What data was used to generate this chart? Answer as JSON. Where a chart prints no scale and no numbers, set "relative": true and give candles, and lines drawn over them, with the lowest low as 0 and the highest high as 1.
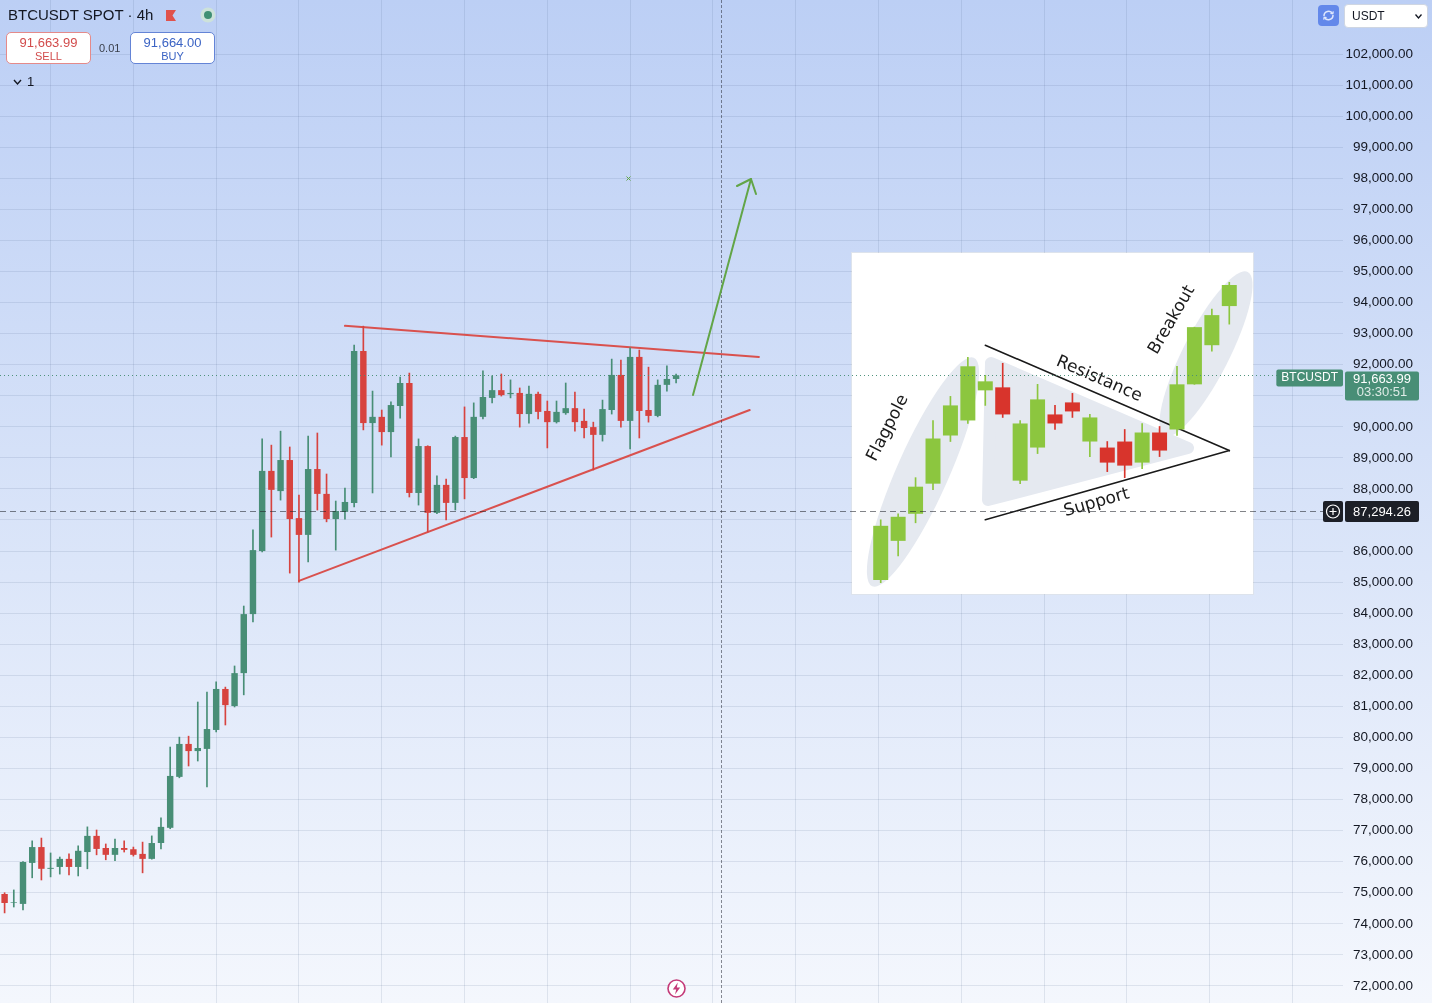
{
  "chart_data": [
    {
      "type": "candlestick",
      "title": "BTCUSDT SPOT · 4h",
      "categories": [
        null,
        null,
        null,
        null,
        null,
        null,
        null,
        null,
        null,
        null,
        null,
        null,
        null,
        null,
        null,
        null,
        null,
        null,
        null,
        null,
        null,
        null,
        null,
        null,
        null,
        null,
        null,
        null,
        null,
        null,
        null,
        null,
        null,
        null,
        null,
        null,
        null,
        null,
        null,
        null,
        null,
        null,
        null,
        null,
        null,
        null,
        null,
        null,
        null,
        null,
        null,
        null,
        null,
        null,
        null,
        null,
        null,
        null,
        null,
        null,
        null,
        null,
        null,
        null,
        null,
        null,
        null,
        null,
        null,
        null,
        null,
        null,
        null,
        null,
        null,
        null,
        null,
        null,
        null,
        null,
        null,
        null,
        null,
        null,
        null,
        null,
        null,
        null,
        null,
        null,
        null,
        null,
        null,
        null,
        null,
        null,
        null,
        null,
        null,
        null,
        null,
        null,
        null,
        null,
        null,
        null,
        null,
        null,
        null,
        null,
        null,
        null,
        null,
        null,
        null,
        null,
        null,
        null,
        null,
        null,
        null,
        null,
        null,
        null,
        null,
        null,
        null,
        null,
        null,
        null,
        null,
        null,
        null,
        null,
        null,
        null,
        null,
        null,
        null,
        null,
        null,
        null,
        null,
        null,
        null,
        null
      ],
      "ohlc": [
        [
          74960,
          75000,
          74350,
          74670
        ],
        [
          74680,
          75090,
          74540,
          74700
        ],
        [
          74640,
          76000,
          74450,
          75990
        ],
        [
          75960,
          76670,
          75480,
          76470
        ],
        [
          76470,
          76760,
          75410,
          75770
        ],
        [
          75770,
          76280,
          75510,
          75800
        ],
        [
          75830,
          76150,
          75600,
          76090
        ],
        [
          76090,
          76250,
          75570,
          75830
        ],
        [
          75830,
          76510,
          75540,
          76350
        ],
        [
          76310,
          77120,
          75770,
          76830
        ],
        [
          76830,
          77020,
          76220,
          76410
        ],
        [
          76440,
          76570,
          76060,
          76220
        ],
        [
          76220,
          76730,
          76030,
          76440
        ],
        [
          76440,
          76670,
          76310,
          76380
        ],
        [
          76400,
          76470,
          76180,
          76220
        ],
        [
          76250,
          76630,
          75640,
          76090
        ],
        [
          76090,
          76830,
          76080,
          76600
        ],
        [
          76600,
          77410,
          76410,
          77120
        ],
        [
          77090,
          79690,
          77060,
          78760
        ],
        [
          78730,
          80010,
          78700,
          79790
        ],
        [
          79790,
          80040,
          79080,
          79560
        ],
        [
          79560,
          81140,
          79240,
          79660
        ],
        [
          79630,
          81460,
          78410,
          80270
        ],
        [
          80240,
          81790,
          80180,
          81560
        ],
        [
          81560,
          81620,
          80400,
          81040
        ],
        [
          81010,
          82300,
          80980,
          82070
        ],
        [
          82070,
          84230,
          81370,
          83970
        ],
        [
          83970,
          86680,
          83720,
          86030
        ],
        [
          86000,
          89610,
          85970,
          88580
        ],
        [
          88580,
          89410,
          86450,
          87970
        ],
        [
          87930,
          89860,
          87640,
          88930
        ],
        [
          88930,
          89350,
          85290,
          87030
        ],
        [
          87060,
          87800,
          85000,
          86520
        ],
        [
          86520,
          89700,
          85650,
          88640
        ],
        [
          88640,
          89800,
          87320,
          87840
        ],
        [
          87840,
          88480,
          86940,
          87030
        ],
        [
          87030,
          87610,
          86030,
          87290
        ],
        [
          87260,
          88030,
          87030,
          87580
        ],
        [
          87550,
          92630,
          87420,
          92440
        ],
        [
          92440,
          93240,
          89900,
          90120
        ],
        [
          90120,
          91150,
          87870,
          90320
        ],
        [
          90320,
          90540,
          89410,
          89830
        ],
        [
          89830,
          90800,
          89030,
          90700
        ],
        [
          90670,
          91600,
          90280,
          91410
        ],
        [
          91410,
          91730,
          87740,
          87870
        ],
        [
          87870,
          89610,
          87480,
          89380
        ],
        [
          89380,
          89390,
          86610,
          87230
        ],
        [
          87230,
          88420,
          87200,
          88130
        ],
        [
          88130,
          88320,
          87000,
          87550
        ],
        [
          87550,
          89700,
          87320,
          89670
        ],
        [
          89670,
          90640,
          87680,
          88350
        ],
        [
          88350,
          90770,
          88330,
          90320
        ],
        [
          90320,
          91800,
          90250,
          90960
        ],
        [
          90930,
          91640,
          90770,
          91180
        ],
        [
          91180,
          91700,
          90990,
          91020
        ],
        [
          91050,
          91510,
          90930,
          91090
        ],
        [
          91090,
          91250,
          89990,
          90410
        ],
        [
          90410,
          91310,
          90120,
          91060
        ],
        [
          91060,
          91120,
          90250,
          90480
        ],
        [
          90510,
          90830,
          89320,
          90150
        ],
        [
          90150,
          90830,
          90120,
          90480
        ],
        [
          90440,
          91410,
          90400,
          90600
        ],
        [
          90600,
          91120,
          89860,
          90150
        ],
        [
          90190,
          90570,
          89640,
          89960
        ],
        [
          89990,
          90150,
          88610,
          89740
        ],
        [
          89740,
          90860,
          89540,
          90570
        ],
        [
          90540,
          92180,
          90410,
          91670
        ],
        [
          91670,
          92150,
          89990,
          90190
        ],
        [
          90190,
          92540,
          89290,
          92250
        ],
        [
          92250,
          92470,
          89640,
          90510
        ],
        [
          90540,
          91920,
          90150,
          90350
        ],
        [
          90350,
          91510,
          90320,
          91350
        ],
        [
          91350,
          91960,
          91150,
          91540
        ],
        [
          91540,
          91700,
          91410,
          91660
        ],
        null,
        null,
        null,
        null,
        null,
        null,
        null,
        null,
        null,
        null,
        null,
        null,
        null,
        null,
        null,
        null,
        null,
        null,
        null,
        null,
        null,
        null,
        null,
        null,
        null,
        null,
        null,
        null,
        null,
        null,
        null,
        null,
        null,
        null,
        null,
        null,
        null,
        null,
        null,
        null,
        null,
        null,
        null,
        null,
        null,
        null,
        null,
        null,
        null,
        null,
        null,
        null,
        null,
        null,
        null,
        null,
        null,
        null,
        null,
        null,
        null,
        null,
        null,
        null,
        null,
        null,
        null,
        null,
        null,
        null,
        null,
        null
      ],
      "colors": [
        "#d7433f",
        "#488e76",
        "#488e76",
        "#488e76",
        "#d7433f",
        "#488e76",
        "#488e76",
        "#d7433f",
        "#488e76",
        "#488e76",
        "#d7433f",
        "#d7433f",
        "#488e76",
        "#d7433f",
        "#d7433f",
        "#d7433f",
        "#488e76",
        "#488e76",
        "#488e76",
        "#488e76",
        "#d7433f",
        "#488e76",
        "#488e76",
        "#488e76",
        "#d7433f",
        "#488e76",
        "#488e76",
        "#488e76",
        "#488e76",
        "#d7433f",
        "#488e76",
        "#d7433f",
        "#d7433f",
        "#488e76",
        "#d7433f",
        "#d7433f",
        "#488e76",
        "#488e76",
        "#488e76",
        "#d7433f",
        "#488e76",
        "#d7433f",
        "#488e76",
        "#488e76",
        "#d7433f",
        "#488e76",
        "#d7433f",
        "#488e76",
        "#d7433f",
        "#488e76",
        "#d7433f",
        "#488e76",
        "#488e76",
        "#488e76",
        "#d7433f",
        "#488e76",
        "#d7433f",
        "#488e76",
        "#d7433f",
        "#d7433f",
        "#488e76",
        "#488e76",
        "#d7433f",
        "#d7433f",
        "#d7433f",
        "#488e76",
        "#488e76",
        "#d7433f",
        "#488e76",
        "#d7433f",
        "#d7433f",
        "#488e76",
        "#488e76",
        "#488e76",
        null,
        null,
        null,
        null,
        null,
        null,
        null,
        null,
        null,
        null,
        null,
        null,
        null,
        null,
        null,
        null,
        null,
        null,
        null,
        null,
        null,
        null,
        null,
        null,
        null,
        null,
        null,
        null,
        null,
        null,
        null,
        null,
        null,
        null,
        null,
        null,
        null,
        null,
        null,
        null,
        null,
        null,
        null,
        null,
        null,
        null,
        null,
        null,
        null,
        null,
        null,
        null,
        null,
        null,
        null,
        null,
        null,
        null,
        null,
        null,
        null,
        null,
        null,
        null,
        null,
        null,
        null,
        null,
        null,
        null,
        null,
        null
      ],
      "series": [
        {
          "type": "line",
          "color": "#d9514e",
          "values": [
            null,
            null,
            null,
            null,
            null,
            null,
            null,
            null,
            null,
            null,
            null,
            null,
            null,
            null,
            null,
            null,
            null,
            null,
            null,
            null,
            null,
            null,
            null,
            null,
            null,
            null,
            null,
            null,
            null,
            null,
            null,
            null,
            null,
            null,
            null,
            null,
            null,
            93250,
            null,
            null,
            null,
            null,
            null,
            null,
            null,
            null,
            null,
            null,
            null,
            null,
            null,
            null,
            null,
            null,
            null,
            null,
            null,
            null,
            null,
            null,
            null,
            null,
            null,
            null,
            null,
            null,
            null,
            null,
            null,
            null,
            null,
            null,
            null,
            null,
            null,
            null,
            null,
            null,
            null,
            null,
            null,
            null,
            92250,
            null,
            null,
            null,
            null,
            null,
            null,
            null,
            null,
            null,
            null,
            null,
            null,
            null,
            null,
            null,
            null,
            null,
            null,
            null,
            null,
            null,
            null,
            null,
            null,
            null,
            null,
            null,
            null,
            null,
            null,
            null,
            null,
            null,
            null,
            null,
            null,
            null,
            null,
            null,
            null,
            null,
            null,
            null,
            null,
            null,
            null,
            null,
            null,
            null,
            null,
            null,
            null,
            null,
            null,
            null,
            null,
            null,
            null,
            null,
            null,
            null,
            null,
            null
          ]
        },
        {
          "type": "line",
          "color": "#d9514e",
          "values": [
            null,
            null,
            null,
            null,
            null,
            null,
            null,
            null,
            null,
            null,
            null,
            null,
            null,
            null,
            null,
            null,
            null,
            null,
            null,
            null,
            null,
            null,
            null,
            null,
            null,
            null,
            null,
            null,
            null,
            null,
            null,
            null,
            85040,
            null,
            null,
            null,
            null,
            null,
            null,
            null,
            null,
            null,
            null,
            null,
            null,
            null,
            null,
            null,
            null,
            null,
            null,
            null,
            null,
            null,
            null,
            null,
            null,
            null,
            null,
            null,
            null,
            null,
            null,
            null,
            null,
            null,
            null,
            null,
            null,
            null,
            null,
            null,
            null,
            null,
            null,
            null,
            null,
            null,
            null,
            null,
            null,
            90540,
            null,
            null,
            null,
            null,
            null,
            null,
            null,
            null,
            null,
            null,
            null,
            null,
            null,
            null,
            null,
            null,
            null,
            null,
            null,
            null,
            null,
            null,
            null,
            null,
            null,
            null,
            null,
            null,
            null,
            null,
            null,
            null,
            null,
            null,
            null,
            null,
            null,
            null,
            null,
            null,
            null,
            null,
            null,
            null,
            null,
            null,
            null,
            null,
            null,
            null,
            null,
            null,
            null,
            null,
            null,
            null,
            null,
            null,
            null,
            null,
            null,
            null,
            null,
            null
          ]
        }
      ],
      "ylim": [
        71450,
        103740
      ],
      "yticks": [
        {
          "value": 72000,
          "label": "72,000.00"
        },
        {
          "value": 73000,
          "label": "73,000.00"
        },
        {
          "value": 74000,
          "label": "74,000.00"
        },
        {
          "value": 75000,
          "label": "75,000.00"
        },
        {
          "value": 76000,
          "label": "76,000.00"
        },
        {
          "value": 77000,
          "label": "77,000.00"
        },
        {
          "value": 78000,
          "label": "78,000.00"
        },
        {
          "value": 79000,
          "label": "79,000.00"
        },
        {
          "value": 80000,
          "label": "80,000.00"
        },
        {
          "value": 81000,
          "label": "81,000.00"
        },
        {
          "value": 82000,
          "label": "82,000.00"
        },
        {
          "value": 83000,
          "label": "83,000.00"
        },
        {
          "value": 84000,
          "label": "84,000.00"
        },
        {
          "value": 85000,
          "label": "85,000.00"
        },
        {
          "value": 86000,
          "label": "86,000.00"
        },
        {
          "value": 87000,
          "label": null
        },
        {
          "value": 88000,
          "label": "88,000.00"
        },
        {
          "value": 89000,
          "label": "89,000.00"
        },
        {
          "value": 90000,
          "label": "90,000.00"
        },
        {
          "value": 91000,
          "label": null
        },
        {
          "value": 92000,
          "label": "92,000.00"
        },
        {
          "value": 93000,
          "label": "93,000.00"
        },
        {
          "value": 94000,
          "label": "94,000.00"
        },
        {
          "value": 95000,
          "label": "95,000.00"
        },
        {
          "value": 96000,
          "label": "96,000.00"
        },
        {
          "value": 97000,
          "label": "97,000.00"
        },
        {
          "value": 98000,
          "label": "98,000.00"
        },
        {
          "value": 99000,
          "label": "99,000.00"
        },
        {
          "value": 100000,
          "label": "100,000.00"
        },
        {
          "value": 101000,
          "label": "101,000.00"
        },
        {
          "value": 102000,
          "label": "102,000.00"
        }
      ],
      "grid": true,
      "tick_labels": "y",
      "ref_lines": [
        {
          "axis": "y",
          "value": 91663.99,
          "label": "91,663.99",
          "color": "#488e76",
          "line_style": "dotted"
        },
        {
          "axis": "y",
          "value": 87294.26,
          "label": "87,294.26",
          "color": "#1c1f27",
          "line_style": "dashed"
        }
      ],
      "annotations": [
        "91,663.99",
        "SELL",
        "0.01",
        "91,664.00",
        "BUY",
        "1",
        "USDT",
        "03:30:51",
        {
          "text": "BTCUSDT",
          "y": 91663.99
        }
      ]
    },
    {
      "type": "candlestick",
      "relative": true,
      "categories": [
        null,
        null,
        null,
        null,
        null,
        null,
        null,
        null,
        null,
        null,
        null,
        null,
        null,
        null,
        null,
        null,
        null,
        null,
        null,
        null,
        null
      ],
      "ohlc": [
        [
          0.01,
          0.21,
          0,
          0.19
        ],
        [
          0.14,
          0.23,
          0.09,
          0.22
        ],
        [
          0.23,
          0.35,
          0.2,
          0.32
        ],
        [
          0.33,
          0.54,
          0.31,
          0.48
        ],
        [
          0.49,
          0.62,
          0.47,
          0.59
        ],
        [
          0.54,
          0.75,
          0.53,
          0.72
        ],
        [
          0.64,
          0.69,
          0.59,
          0.67
        ],
        [
          0.65,
          0.73,
          0.55,
          0.56
        ],
        [
          0.34,
          0.54,
          0.33,
          0.53
        ],
        [
          0.45,
          0.66,
          0.43,
          0.61
        ],
        [
          0.56,
          0.59,
          0.51,
          0.53
        ],
        [
          0.6,
          0.63,
          0.55,
          0.57
        ],
        [
          0.47,
          0.56,
          0.42,
          0.55
        ],
        [
          0.45,
          0.47,
          0.37,
          0.4
        ],
        [
          0.47,
          0.51,
          0.35,
          0.39
        ],
        [
          0.4,
          0.53,
          0.38,
          0.5
        ],
        [
          0.5,
          0.52,
          0.42,
          0.44
        ],
        [
          0.51,
          0.72,
          0.49,
          0.66
        ],
        [
          0.66,
          0.85,
          0.66,
          0.85
        ],
        [
          0.79,
          0.91,
          0.77,
          0.89
        ],
        [
          0.92,
          1,
          0.86,
          0.99
        ]
      ],
      "colors": [
        "#8cc63f",
        "#8cc63f",
        "#8cc63f",
        "#8cc63f",
        "#8cc63f",
        "#8cc63f",
        "#8cc63f",
        "#d8342c",
        "#8cc63f",
        "#8cc63f",
        "#d8342c",
        "#d8342c",
        "#8cc63f",
        "#d8342c",
        "#d8342c",
        "#8cc63f",
        "#d8342c",
        "#8cc63f",
        "#8cc63f",
        "#8cc63f",
        "#8cc63f"
      ],
      "series": [
        {
          "type": "line",
          "name": "Resistance",
          "color": "#1a1a1a",
          "values": [
            null,
            null,
            null,
            null,
            null,
            null,
            0.79,
            null,
            null,
            null,
            null,
            null,
            null,
            null,
            null,
            null,
            null,
            null,
            null,
            null,
            0.44
          ]
        },
        {
          "type": "line",
          "name": "Support",
          "color": "#1a1a1a",
          "values": [
            null,
            null,
            null,
            null,
            null,
            null,
            0.21,
            null,
            null,
            null,
            null,
            null,
            null,
            null,
            null,
            null,
            null,
            null,
            null,
            null,
            0.44
          ]
        }
      ],
      "tick_labels": false,
      "annotations": [
        "Flagpole",
        "Breakout"
      ]
    }
  ]
}
